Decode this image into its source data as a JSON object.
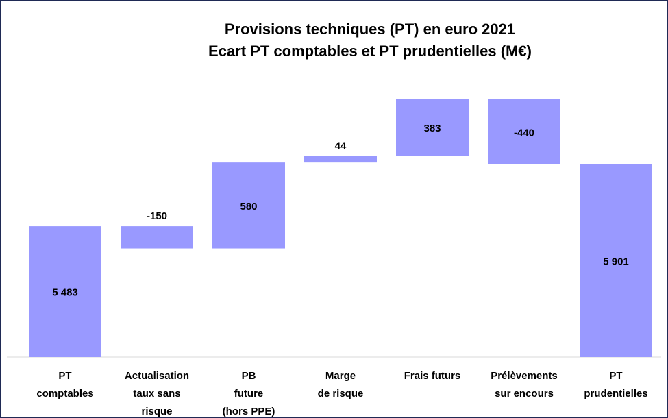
{
  "chart_data": {
    "type": "waterfall",
    "title": "Provisions techniques (PT) en euro 2021\nEcart PT comptables et PT prudentielles (M€)",
    "categories": [
      "PT\ncomptables",
      "Actualisation\ntaux sans\nrisque",
      "PB\nfuture\n(hors PPE)",
      "Marge\nde risque",
      "Frais futurs",
      "Prélèvements\nsur encours",
      "PT\nprudentielles"
    ],
    "values": [
      5483,
      -150,
      580,
      44,
      383,
      -440,
      5901
    ],
    "value_labels": [
      "5 483",
      "-150",
      "580",
      "44",
      "383",
      "-440",
      "5 901"
    ],
    "color": "#9999ff",
    "ylim": [
      4600,
      6700
    ]
  }
}
